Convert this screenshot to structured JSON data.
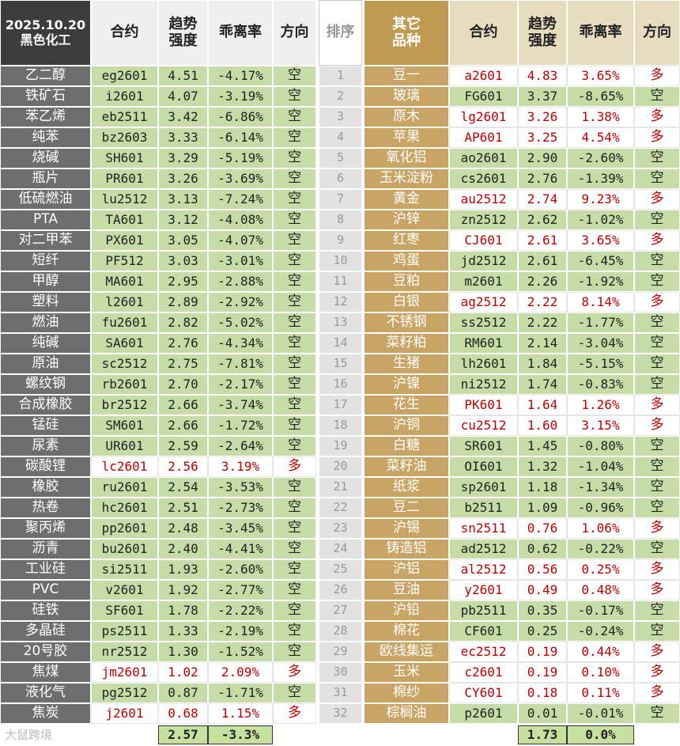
{
  "date": "2025.10.20",
  "sector": "黑色化工",
  "rank_header": "排序",
  "columns": [
    [
      "合约"
    ],
    [
      "趋势",
      "强度"
    ],
    [
      "乖离率"
    ],
    [
      "方向"
    ]
  ],
  "right_title": [
    "其它",
    "品种"
  ],
  "ranks": [
    "1",
    "2",
    "3",
    "4",
    "5",
    "6",
    "7",
    "8",
    "9",
    "10",
    "11",
    "12",
    "13",
    "14",
    "15",
    "16",
    "17",
    "18",
    "19",
    "20",
    "21",
    "22",
    "23",
    "24",
    "25",
    "26",
    "27",
    "28",
    "29",
    "30",
    "31",
    "32"
  ],
  "left": {
    "rows": [
      [
        "乙二醇",
        "eg2601",
        "4.51",
        "-4.17%",
        "空"
      ],
      [
        "铁矿石",
        "i2601",
        "4.07",
        "-3.19%",
        "空"
      ],
      [
        "苯乙烯",
        "eb2511",
        "3.42",
        "-6.86%",
        "空"
      ],
      [
        "纯苯",
        "bz2603",
        "3.33",
        "-6.14%",
        "空"
      ],
      [
        "烧碱",
        "SH601",
        "3.29",
        "-5.19%",
        "空"
      ],
      [
        "瓶片",
        "PR601",
        "3.26",
        "-3.69%",
        "空"
      ],
      [
        "低硫燃油",
        "lu2512",
        "3.13",
        "-7.24%",
        "空"
      ],
      [
        "PTA",
        "TA601",
        "3.12",
        "-4.08%",
        "空"
      ],
      [
        "对二甲苯",
        "PX601",
        "3.05",
        "-4.07%",
        "空"
      ],
      [
        "短纤",
        "PF512",
        "3.03",
        "-3.01%",
        "空"
      ],
      [
        "甲醇",
        "MA601",
        "2.95",
        "-2.88%",
        "空"
      ],
      [
        "塑料",
        "l2601",
        "2.89",
        "-2.92%",
        "空"
      ],
      [
        "燃油",
        "fu2601",
        "2.82",
        "-5.02%",
        "空"
      ],
      [
        "纯碱",
        "SA601",
        "2.76",
        "-4.34%",
        "空"
      ],
      [
        "原油",
        "sc2512",
        "2.75",
        "-7.81%",
        "空"
      ],
      [
        "螺纹钢",
        "rb2601",
        "2.70",
        "-2.17%",
        "空"
      ],
      [
        "合成橡胶",
        "br2512",
        "2.66",
        "-3.74%",
        "空"
      ],
      [
        "锰硅",
        "SM601",
        "2.66",
        "-1.72%",
        "空"
      ],
      [
        "尿素",
        "UR601",
        "2.59",
        "-2.64%",
        "空"
      ],
      [
        "碳酸锂",
        "lc2601",
        "2.56",
        "3.19%",
        "多"
      ],
      [
        "橡胶",
        "ru2601",
        "2.54",
        "-3.53%",
        "空"
      ],
      [
        "热卷",
        "hc2601",
        "2.51",
        "-2.73%",
        "空"
      ],
      [
        "聚丙烯",
        "pp2601",
        "2.48",
        "-3.45%",
        "空"
      ],
      [
        "沥青",
        "bu2601",
        "2.40",
        "-4.41%",
        "空"
      ],
      [
        "工业硅",
        "si2511",
        "1.93",
        "-2.60%",
        "空"
      ],
      [
        "PVC",
        "v2601",
        "1.92",
        "-2.77%",
        "空"
      ],
      [
        "硅铁",
        "SF601",
        "1.78",
        "-2.22%",
        "空"
      ],
      [
        "多晶硅",
        "ps2511",
        "1.33",
        "-2.19%",
        "空"
      ],
      [
        "20号胶",
        "nr2512",
        "1.30",
        "-1.52%",
        "空"
      ],
      [
        "焦煤",
        "jm2601",
        "1.02",
        "2.09%",
        "多"
      ],
      [
        "液化气",
        "pg2512",
        "0.87",
        "-1.71%",
        "空"
      ],
      [
        "焦炭",
        "j2601",
        "0.68",
        "1.15%",
        "多"
      ]
    ],
    "summary": [
      "2.57",
      "-3.3%"
    ]
  },
  "right": {
    "rows": [
      [
        "豆一",
        "a2601",
        "4.83",
        "3.65%",
        "多"
      ],
      [
        "玻璃",
        "FG601",
        "3.37",
        "-8.65%",
        "空"
      ],
      [
        "原木",
        "lg2601",
        "3.26",
        "1.38%",
        "多"
      ],
      [
        "苹果",
        "AP601",
        "3.25",
        "4.54%",
        "多"
      ],
      [
        "氧化铝",
        "ao2601",
        "2.90",
        "-2.60%",
        "空"
      ],
      [
        "玉米淀粉",
        "cs2601",
        "2.76",
        "-1.39%",
        "空"
      ],
      [
        "黄金",
        "au2512",
        "2.74",
        "9.23%",
        "多"
      ],
      [
        "沪锌",
        "zn2512",
        "2.62",
        "-1.02%",
        "空"
      ],
      [
        "红枣",
        "CJ601",
        "2.61",
        "3.65%",
        "多"
      ],
      [
        "鸡蛋",
        "jd2512",
        "2.61",
        "-6.45%",
        "空"
      ],
      [
        "豆粕",
        "m2601",
        "2.26",
        "-1.92%",
        "空"
      ],
      [
        "白银",
        "ag2512",
        "2.22",
        "8.14%",
        "多"
      ],
      [
        "不锈钢",
        "ss2512",
        "2.22",
        "-1.77%",
        "空"
      ],
      [
        "菜籽粕",
        "RM601",
        "2.14",
        "-3.04%",
        "空"
      ],
      [
        "生猪",
        "lh2601",
        "1.84",
        "-5.15%",
        "空"
      ],
      [
        "沪镍",
        "ni2512",
        "1.74",
        "-0.83%",
        "空"
      ],
      [
        "花生",
        "PK601",
        "1.64",
        "1.26%",
        "多"
      ],
      [
        "沪铜",
        "cu2512",
        "1.60",
        "3.15%",
        "多"
      ],
      [
        "白糖",
        "SR601",
        "1.45",
        "-0.80%",
        "空"
      ],
      [
        "菜籽油",
        "OI601",
        "1.32",
        "-1.04%",
        "空"
      ],
      [
        "纸浆",
        "sp2601",
        "1.18",
        "-1.34%",
        "空"
      ],
      [
        "豆二",
        "b2511",
        "1.09",
        "-0.96%",
        "空"
      ],
      [
        "沪锡",
        "sn2511",
        "0.76",
        "1.06%",
        "多"
      ],
      [
        "铸造铝",
        "ad2512",
        "0.62",
        "-0.22%",
        "空"
      ],
      [
        "沪铝",
        "al2512",
        "0.56",
        "0.25%",
        "多"
      ],
      [
        "豆油",
        "y2601",
        "0.49",
        "0.48%",
        "多"
      ],
      [
        "沪铅",
        "pb2511",
        "0.35",
        "-0.17%",
        "空"
      ],
      [
        "棉花",
        "CF601",
        "0.25",
        "-0.24%",
        "空"
      ],
      [
        "欧线集运",
        "ec2512",
        "0.19",
        "0.44%",
        "多"
      ],
      [
        "玉米",
        "c2601",
        "0.19",
        "0.10%",
        "多"
      ],
      [
        "棉纱",
        "CY601",
        "0.18",
        "0.11%",
        "多"
      ],
      [
        "棕榈油",
        "p2601",
        "0.01",
        "-0.01%",
        "空"
      ]
    ],
    "summary": [
      "1.73",
      "0.0%"
    ]
  },
  "watermark": "大鼠跨境"
}
